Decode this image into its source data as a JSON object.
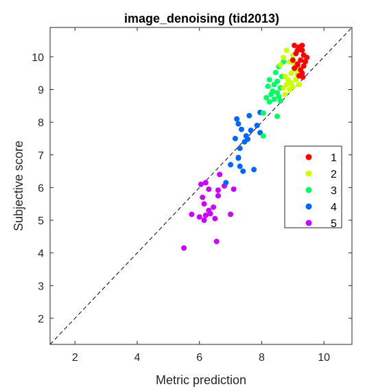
{
  "chart_data": {
    "type": "scatter",
    "title": "image_denoising (tid2013)",
    "xlabel": "Metric prediction",
    "ylabel": "Subjective score",
    "xlim": [
      1.2,
      10.9
    ],
    "ylim": [
      1.2,
      10.9
    ],
    "xticks": [
      2,
      4,
      6,
      8,
      10
    ],
    "yticks": [
      2,
      3,
      4,
      5,
      6,
      7,
      8,
      9,
      10
    ],
    "grid": false,
    "reference_line": {
      "style": "dashed",
      "from": [
        1.2,
        1.2
      ],
      "to": [
        10.9,
        10.9
      ]
    },
    "legend_position": "right",
    "series": [
      {
        "name": "1",
        "color": "#ff0000",
        "points": [
          [
            9.05,
            10.35
          ],
          [
            9.2,
            10.3
          ],
          [
            9.3,
            10.35
          ],
          [
            9.15,
            10.2
          ],
          [
            9.3,
            10.2
          ],
          [
            9.1,
            10.1
          ],
          [
            9.35,
            10.05
          ],
          [
            9.45,
            9.98
          ],
          [
            9.0,
            9.9
          ],
          [
            9.25,
            9.9
          ],
          [
            9.15,
            9.78
          ],
          [
            9.35,
            9.72
          ],
          [
            9.05,
            9.65
          ],
          [
            9.25,
            9.6
          ],
          [
            9.3,
            9.5
          ],
          [
            9.2,
            9.42
          ],
          [
            9.32,
            9.38
          ],
          [
            9.15,
            9.75
          ],
          [
            9.4,
            9.85
          ]
        ]
      },
      {
        "name": "2",
        "color": "#ccff00",
        "points": [
          [
            8.8,
            10.2
          ],
          [
            8.7,
            9.98
          ],
          [
            9.0,
            10.05
          ],
          [
            8.9,
            9.85
          ],
          [
            9.05,
            9.8
          ],
          [
            8.6,
            9.75
          ],
          [
            9.1,
            9.6
          ],
          [
            8.95,
            9.5
          ],
          [
            9.15,
            9.45
          ],
          [
            8.75,
            9.4
          ],
          [
            8.85,
            9.3
          ],
          [
            8.95,
            9.2
          ],
          [
            8.8,
            9.15
          ],
          [
            9.0,
            9.08
          ],
          [
            8.7,
            9.05
          ],
          [
            9.1,
            9.3
          ],
          [
            8.9,
            9.0
          ],
          [
            8.75,
            8.85
          ],
          [
            9.2,
            9.15
          ]
        ]
      },
      {
        "name": "3",
        "color": "#00ff66",
        "points": [
          [
            8.55,
            9.7
          ],
          [
            8.45,
            9.52
          ],
          [
            8.65,
            9.4
          ],
          [
            8.25,
            9.3
          ],
          [
            8.5,
            9.25
          ],
          [
            8.4,
            9.15
          ],
          [
            8.2,
            9.1
          ],
          [
            8.6,
            9.05
          ],
          [
            8.35,
            8.95
          ],
          [
            8.5,
            8.9
          ],
          [
            8.3,
            8.85
          ],
          [
            8.55,
            8.78
          ],
          [
            8.15,
            8.75
          ],
          [
            8.4,
            8.7
          ],
          [
            8.25,
            8.62
          ],
          [
            8.6,
            8.65
          ],
          [
            8.05,
            8.28
          ],
          [
            8.5,
            8.18
          ],
          [
            8.05,
            7.58
          ],
          [
            8.7,
            9.85
          ]
        ]
      },
      {
        "name": "4",
        "color": "#0066ff",
        "points": [
          [
            7.95,
            8.3
          ],
          [
            7.6,
            8.2
          ],
          [
            7.2,
            8.1
          ],
          [
            7.25,
            7.95
          ],
          [
            7.85,
            7.9
          ],
          [
            7.65,
            7.75
          ],
          [
            7.35,
            7.78
          ],
          [
            7.95,
            7.68
          ],
          [
            7.5,
            7.58
          ],
          [
            7.55,
            7.48
          ],
          [
            7.15,
            7.5
          ],
          [
            7.45,
            7.4
          ],
          [
            7.3,
            7.2
          ],
          [
            7.25,
            6.9
          ],
          [
            6.85,
            6.15
          ],
          [
            7.75,
            6.55
          ],
          [
            7.25,
            6.92
          ],
          [
            7.0,
            6.7
          ],
          [
            7.3,
            6.65
          ],
          [
            7.4,
            6.5
          ]
        ]
      },
      {
        "name": "5",
        "color": "#cc00ff",
        "points": [
          [
            6.05,
            6.1
          ],
          [
            6.2,
            6.15
          ],
          [
            6.65,
            6.4
          ],
          [
            6.3,
            5.95
          ],
          [
            6.8,
            6.05
          ],
          [
            6.6,
            5.92
          ],
          [
            7.1,
            5.95
          ],
          [
            6.1,
            5.7
          ],
          [
            6.15,
            5.5
          ],
          [
            6.6,
            5.75
          ],
          [
            6.3,
            5.3
          ],
          [
            6.45,
            5.4
          ],
          [
            6.0,
            5.1
          ],
          [
            6.2,
            5.15
          ],
          [
            6.35,
            5.2
          ],
          [
            6.5,
            5.05
          ],
          [
            5.75,
            5.18
          ],
          [
            6.15,
            5.0
          ],
          [
            7.0,
            5.18
          ],
          [
            6.55,
            4.35
          ],
          [
            5.5,
            4.15
          ]
        ]
      }
    ]
  }
}
